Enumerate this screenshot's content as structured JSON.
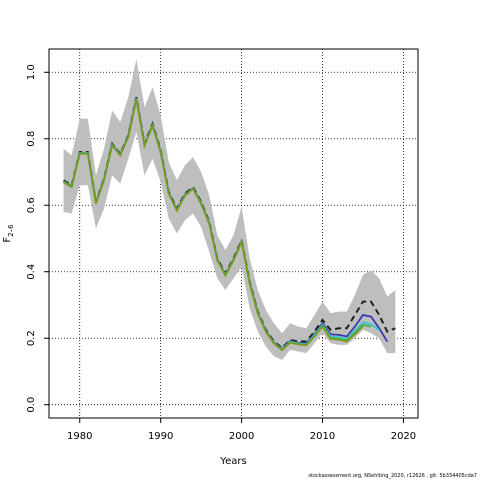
{
  "chart_data": {
    "type": "line",
    "xlabel": "Years",
    "ylabel_base": "F",
    "ylabel_sub": "2–6",
    "xlim": [
      1976.2,
      2021.8
    ],
    "ylim": [
      -0.04,
      1.07
    ],
    "x_ticks": [
      1980,
      1990,
      2000,
      2010,
      2020
    ],
    "y_ticks": [
      0.0,
      0.2,
      0.4,
      0.6,
      0.8,
      1.0
    ],
    "x_tick_labels": [
      "1980",
      "1990",
      "2000",
      "2010",
      "2020"
    ],
    "y_tick_labels": [
      "0.0",
      "0.2",
      "0.4",
      "0.6",
      "0.8",
      "1.0"
    ],
    "grid": true,
    "grid_style": "dotted",
    "colors": {
      "band": "#bebebe",
      "dashed": "#222222",
      "blue": "#3b3bb0",
      "cyan": "#36c6c6",
      "green": "#4daf4a",
      "olive": "#7a9a1e"
    },
    "uncertainty_band": {
      "x": [
        1978,
        1979,
        1980,
        1981,
        1982,
        1983,
        1984,
        1985,
        1986,
        1987,
        1988,
        1989,
        1990,
        1991,
        1992,
        1993,
        1994,
        1995,
        1996,
        1997,
        1998,
        1999,
        2000,
        2001,
        2002,
        2003,
        2004,
        2005,
        2006,
        2007,
        2008,
        2009,
        2010,
        2011,
        2012,
        2013,
        2014,
        2015,
        2016,
        2017,
        2018,
        2019
      ],
      "lower": [
        0.58,
        0.575,
        0.66,
        0.66,
        0.53,
        0.59,
        0.69,
        0.665,
        0.74,
        0.82,
        0.69,
        0.74,
        0.67,
        0.56,
        0.515,
        0.555,
        0.575,
        0.535,
        0.46,
        0.38,
        0.345,
        0.38,
        0.415,
        0.29,
        0.22,
        0.175,
        0.145,
        0.135,
        0.165,
        0.16,
        0.155,
        0.185,
        0.215,
        0.185,
        0.18,
        0.18,
        0.2,
        0.225,
        0.215,
        0.2,
        0.155,
        0.155
      ],
      "upper": [
        0.77,
        0.75,
        0.86,
        0.86,
        0.69,
        0.77,
        0.885,
        0.85,
        0.925,
        1.04,
        0.895,
        0.955,
        0.87,
        0.73,
        0.675,
        0.72,
        0.745,
        0.7,
        0.63,
        0.51,
        0.465,
        0.51,
        0.595,
        0.44,
        0.345,
        0.285,
        0.245,
        0.215,
        0.245,
        0.235,
        0.23,
        0.27,
        0.31,
        0.275,
        0.28,
        0.28,
        0.33,
        0.39,
        0.405,
        0.38,
        0.325,
        0.345
      ]
    },
    "series": [
      {
        "style": "dashed",
        "x": [
          1978,
          1979,
          1980,
          1981,
          1982,
          1983,
          1984,
          1985,
          1986,
          1987,
          1988,
          1989,
          1990,
          1991,
          1992,
          1993,
          1994,
          1995,
          1996,
          1997,
          1998,
          1999,
          2000,
          2001,
          2002,
          2003,
          2004,
          2005,
          2006,
          2007,
          2008,
          2009,
          2010,
          2011,
          2012,
          2013,
          2014,
          2015,
          2016,
          2017,
          2018,
          2019
        ],
        "values": [
          0.675,
          0.66,
          0.76,
          0.76,
          0.61,
          0.68,
          0.785,
          0.755,
          0.81,
          0.925,
          0.785,
          0.845,
          0.765,
          0.64,
          0.59,
          0.635,
          0.655,
          0.61,
          0.55,
          0.44,
          0.395,
          0.44,
          0.495,
          0.37,
          0.28,
          0.225,
          0.19,
          0.17,
          0.195,
          0.19,
          0.19,
          0.22,
          0.255,
          0.225,
          0.23,
          0.23,
          0.27,
          0.31,
          0.31,
          0.27,
          0.22,
          0.23
        ]
      },
      {
        "style": "solid",
        "color_key": "blue",
        "x": [
          1978,
          1979,
          1980,
          1981,
          1982,
          1983,
          1984,
          1985,
          1986,
          1987,
          1988,
          1989,
          1990,
          1991,
          1992,
          1993,
          1994,
          1995,
          1996,
          1997,
          1998,
          1999,
          2000,
          2001,
          2002,
          2003,
          2004,
          2005,
          2006,
          2007,
          2008,
          2009,
          2010,
          2011,
          2012,
          2013,
          2014,
          2015,
          2016,
          2017,
          2018
        ],
        "values": [
          0.672,
          0.658,
          0.758,
          0.758,
          0.608,
          0.678,
          0.783,
          0.753,
          0.808,
          0.922,
          0.782,
          0.842,
          0.762,
          0.637,
          0.587,
          0.632,
          0.652,
          0.607,
          0.547,
          0.437,
          0.392,
          0.437,
          0.492,
          0.367,
          0.277,
          0.222,
          0.187,
          0.167,
          0.192,
          0.186,
          0.185,
          0.213,
          0.245,
          0.212,
          0.21,
          0.205,
          0.235,
          0.27,
          0.265,
          0.23,
          0.19
        ]
      },
      {
        "style": "solid",
        "color_key": "cyan",
        "x": [
          1978,
          1979,
          1980,
          1981,
          1982,
          1983,
          1984,
          1985,
          1986,
          1987,
          1988,
          1989,
          1990,
          1991,
          1992,
          1993,
          1994,
          1995,
          1996,
          1997,
          1998,
          1999,
          2000,
          2001,
          2002,
          2003,
          2004,
          2005,
          2006,
          2007,
          2008,
          2009,
          2010,
          2011,
          2012,
          2013,
          2014,
          2015,
          2016,
          2017
        ],
        "values": [
          0.671,
          0.657,
          0.757,
          0.757,
          0.607,
          0.677,
          0.782,
          0.752,
          0.807,
          0.921,
          0.781,
          0.841,
          0.761,
          0.636,
          0.586,
          0.631,
          0.651,
          0.606,
          0.546,
          0.436,
          0.391,
          0.436,
          0.491,
          0.366,
          0.276,
          0.221,
          0.186,
          0.166,
          0.19,
          0.184,
          0.182,
          0.21,
          0.24,
          0.205,
          0.203,
          0.197,
          0.222,
          0.248,
          0.242,
          0.225
        ]
      },
      {
        "style": "solid",
        "color_key": "green",
        "x": [
          1978,
          1979,
          1980,
          1981,
          1982,
          1983,
          1984,
          1985,
          1986,
          1987,
          1988,
          1989,
          1990,
          1991,
          1992,
          1993,
          1994,
          1995,
          1996,
          1997,
          1998,
          1999,
          2000,
          2001,
          2002,
          2003,
          2004,
          2005,
          2006,
          2007,
          2008,
          2009,
          2010,
          2011,
          2012,
          2013,
          2014,
          2015,
          2016
        ],
        "values": [
          0.67,
          0.656,
          0.756,
          0.756,
          0.606,
          0.676,
          0.781,
          0.751,
          0.806,
          0.92,
          0.78,
          0.84,
          0.76,
          0.635,
          0.585,
          0.63,
          0.65,
          0.605,
          0.545,
          0.435,
          0.39,
          0.435,
          0.49,
          0.365,
          0.275,
          0.22,
          0.185,
          0.165,
          0.188,
          0.182,
          0.18,
          0.207,
          0.237,
          0.2,
          0.198,
          0.193,
          0.215,
          0.24,
          0.235
        ]
      },
      {
        "style": "solid",
        "color_key": "olive",
        "x": [
          1978,
          1979,
          1980,
          1981,
          1982,
          1983,
          1984,
          1985,
          1986,
          1987,
          1988,
          1989,
          1990,
          1991,
          1992,
          1993,
          1994,
          1995,
          1996,
          1997,
          1998,
          1999,
          2000,
          2001,
          2002,
          2003,
          2004,
          2005,
          2006,
          2007,
          2008,
          2009,
          2010,
          2011,
          2012,
          2013,
          2014,
          2015
        ],
        "values": [
          0.669,
          0.655,
          0.755,
          0.755,
          0.605,
          0.675,
          0.78,
          0.75,
          0.805,
          0.919,
          0.779,
          0.839,
          0.759,
          0.634,
          0.584,
          0.629,
          0.649,
          0.604,
          0.544,
          0.434,
          0.389,
          0.434,
          0.489,
          0.364,
          0.274,
          0.219,
          0.184,
          0.164,
          0.187,
          0.181,
          0.179,
          0.205,
          0.235,
          0.198,
          0.196,
          0.19,
          0.212,
          0.236
        ]
      }
    ]
  },
  "footer": {
    "text": "stockassessment.org, NSehlting_2020, r12626 , git: 5b334405cda7"
  }
}
